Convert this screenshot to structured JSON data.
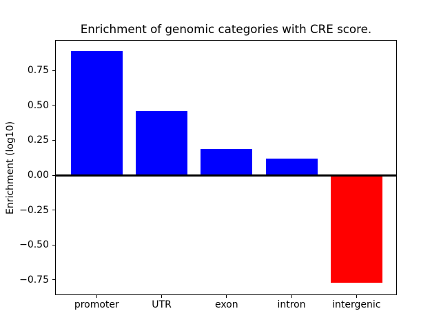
{
  "figure": {
    "background": "#ffffff"
  },
  "chart_data": {
    "type": "bar",
    "title": "Enrichment of genomic categories with CRE score.",
    "xlabel": "",
    "ylabel": "Enrichment (log10)",
    "categories": [
      "promoter",
      "UTR",
      "exon",
      "intron",
      "intergenic"
    ],
    "values": [
      0.89,
      0.46,
      0.19,
      0.12,
      -0.77
    ],
    "bar_colors": [
      "#0000ff",
      "#0000ff",
      "#0000ff",
      "#0000ff",
      "#ff0000"
    ],
    "positive_color": "#0000ff",
    "negative_color": "#ff0000",
    "yticks": [
      0.75,
      0.5,
      0.25,
      0,
      -0.25,
      -0.5,
      -0.75
    ],
    "ytick_labels": [
      "0.75",
      "0.50",
      "0.25",
      "0.00",
      "−0.25",
      "−0.50",
      "−0.75"
    ],
    "ylim": [
      -0.85,
      0.97
    ],
    "zero_line": true,
    "grid": false,
    "legend_position": "none"
  }
}
